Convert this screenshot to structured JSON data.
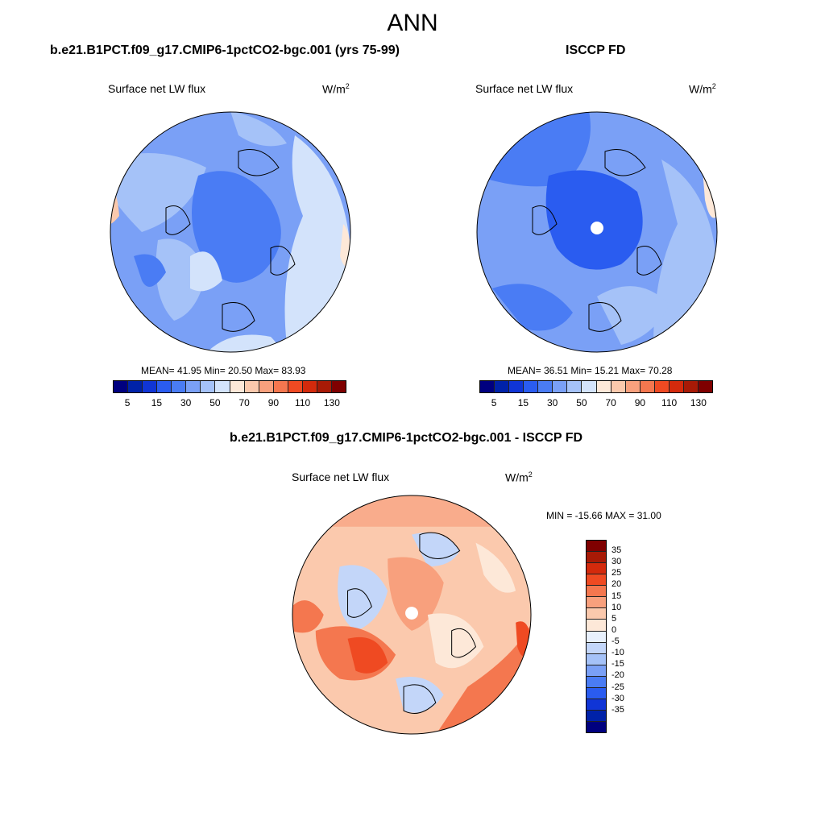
{
  "title": "ANN",
  "panels": [
    {
      "title": "b.e21.B1PCT.f09_g17.CMIP6-1pctCO2-bgc.001 (yrs 75-99)",
      "variable": "Surface net LW flux",
      "units": "W/m",
      "units_exp": "2",
      "stats": "MEAN=  41.95  Min=  20.50  Max=  83.93"
    },
    {
      "title": "ISCCP FD",
      "variable": "Surface net LW flux",
      "units": "W/m",
      "units_exp": "2",
      "stats": "MEAN=  36.51  Min=  15.21  Max=  70.28"
    },
    {
      "title": "b.e21.B1PCT.f09_g17.CMIP6-1pctCO2-bgc.001 - ISCCP FD",
      "variable": "Surface net LW flux",
      "units": "W/m",
      "units_exp": "2",
      "stats": "MIN = -15.66 MAX =  31.00"
    }
  ],
  "colorbar_abs": {
    "colors": [
      "#00007f",
      "#0022a8",
      "#1035d6",
      "#2a5cf0",
      "#4a7cf4",
      "#7aa0f6",
      "#a5c2f8",
      "#d3e3fb",
      "#fde8d8",
      "#fbc9ad",
      "#f8a07d",
      "#f4774f",
      "#ef4a22",
      "#d42a0c",
      "#a81a06",
      "#7f0000"
    ],
    "ticks": [
      "5",
      "15",
      "30",
      "50",
      "70",
      "90",
      "110",
      "130"
    ]
  },
  "colorbar_diff": {
    "colors": [
      "#7f0000",
      "#a81a06",
      "#d42a0c",
      "#ef4a22",
      "#f4774f",
      "#f8a07d",
      "#fbc9ad",
      "#fde8d8",
      "#e8f0fc",
      "#c3d6f9",
      "#a5c2f8",
      "#7aa0f6",
      "#4a7cf4",
      "#2a5cf0",
      "#1035d6",
      "#0022a8",
      "#00007f"
    ],
    "ticks": [
      "35",
      "30",
      "25",
      "20",
      "15",
      "10",
      "5",
      "0",
      "-5",
      "-10",
      "-15",
      "-20",
      "-25",
      "-30",
      "-35"
    ]
  }
}
